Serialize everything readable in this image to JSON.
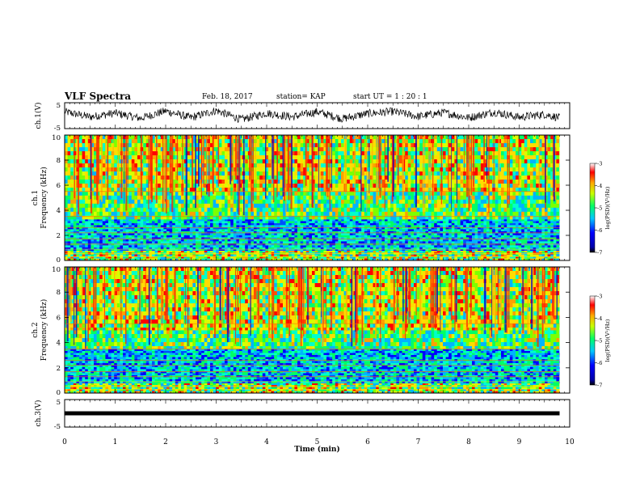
{
  "header": {
    "title": "VLF Spectra",
    "date": "Feb. 18, 2017",
    "station": "station= KAP",
    "start": "start  UT =   1 : 20 : 1"
  },
  "chart_data": [
    {
      "type": "line",
      "name": "ch1-waveform",
      "ylabel": "ch.1(V)",
      "ylim": [
        -5,
        5
      ],
      "yticks": [
        "5",
        "-5"
      ],
      "xlim": [
        0,
        10
      ],
      "description_of_signal": "dense noisy waveform roughly between -3 and 3 V spanning 0 to 9.8 min",
      "x": [
        0,
        0.5,
        1.0,
        1.5,
        2.0,
        2.5,
        3.0,
        3.5,
        4.0,
        4.5,
        5.0,
        5.5,
        6.0,
        6.5,
        7.0,
        7.5,
        8.0,
        8.5,
        9.0,
        9.5,
        9.8
      ],
      "y": [
        1.5,
        -0.5,
        1.0,
        -1.0,
        1.8,
        -0.8,
        2.0,
        -1.5,
        1.0,
        -0.5,
        1.5,
        -1.2,
        0.8,
        1.6,
        -0.3,
        1.2,
        -0.8,
        1.4,
        -0.6,
        0.5,
        -0.8
      ]
    },
    {
      "type": "heatmap",
      "name": "ch1-spectrogram",
      "ylabel": "ch.1 Frequency (kHz)",
      "ylim": [
        0,
        10
      ],
      "yticks": [
        "0",
        "2",
        "4",
        "6",
        "8",
        "10"
      ],
      "xlim": [
        0,
        10
      ],
      "data_end_min": 9.8,
      "colorbar": {
        "label": "log(PSD)(V²/Hz)",
        "range": [
          -7,
          -3
        ],
        "ticks": [
          "-3",
          "-4",
          "-5",
          "-6",
          "-7"
        ]
      },
      "bands_khz": [
        {
          "from": 0.0,
          "to": 0.8,
          "level": "mixed"
        },
        {
          "from": 0.8,
          "to": 3.3,
          "level": "low"
        },
        {
          "from": 3.3,
          "to": 5.5,
          "level": "medium"
        },
        {
          "from": 5.5,
          "to": 10.0,
          "level": "high"
        }
      ]
    },
    {
      "type": "heatmap",
      "name": "ch2-spectrogram",
      "ylabel": "ch.2 Frequency (kHz)",
      "ylim": [
        0,
        10
      ],
      "yticks": [
        "0",
        "2",
        "4",
        "6",
        "8",
        "10"
      ],
      "xlim": [
        0,
        10
      ],
      "data_end_min": 9.8,
      "colorbar": {
        "label": "log(PSD)(V²/Hz)",
        "range": [
          -7,
          -3
        ],
        "ticks": [
          "-3",
          "-4",
          "-5",
          "-6",
          "-7"
        ]
      },
      "bands_khz": [
        {
          "from": 0.0,
          "to": 0.8,
          "level": "mixed"
        },
        {
          "from": 0.8,
          "to": 3.5,
          "level": "low"
        },
        {
          "from": 3.5,
          "to": 5.0,
          "level": "medium"
        },
        {
          "from": 5.0,
          "to": 10.0,
          "level": "high"
        }
      ]
    },
    {
      "type": "line",
      "name": "ch3-waveform",
      "ylabel": "ch.3(V)",
      "ylim": [
        -5,
        5
      ],
      "yticks": [
        "5",
        "-5"
      ],
      "xlim": [
        0,
        10
      ],
      "x": [
        0,
        9.8
      ],
      "y": [
        0,
        0
      ]
    }
  ],
  "xaxis": {
    "label": "Time  (min)",
    "ticks": [
      "0",
      "1",
      "2",
      "3",
      "4",
      "5",
      "6",
      "7",
      "8",
      "9",
      "10"
    ]
  }
}
